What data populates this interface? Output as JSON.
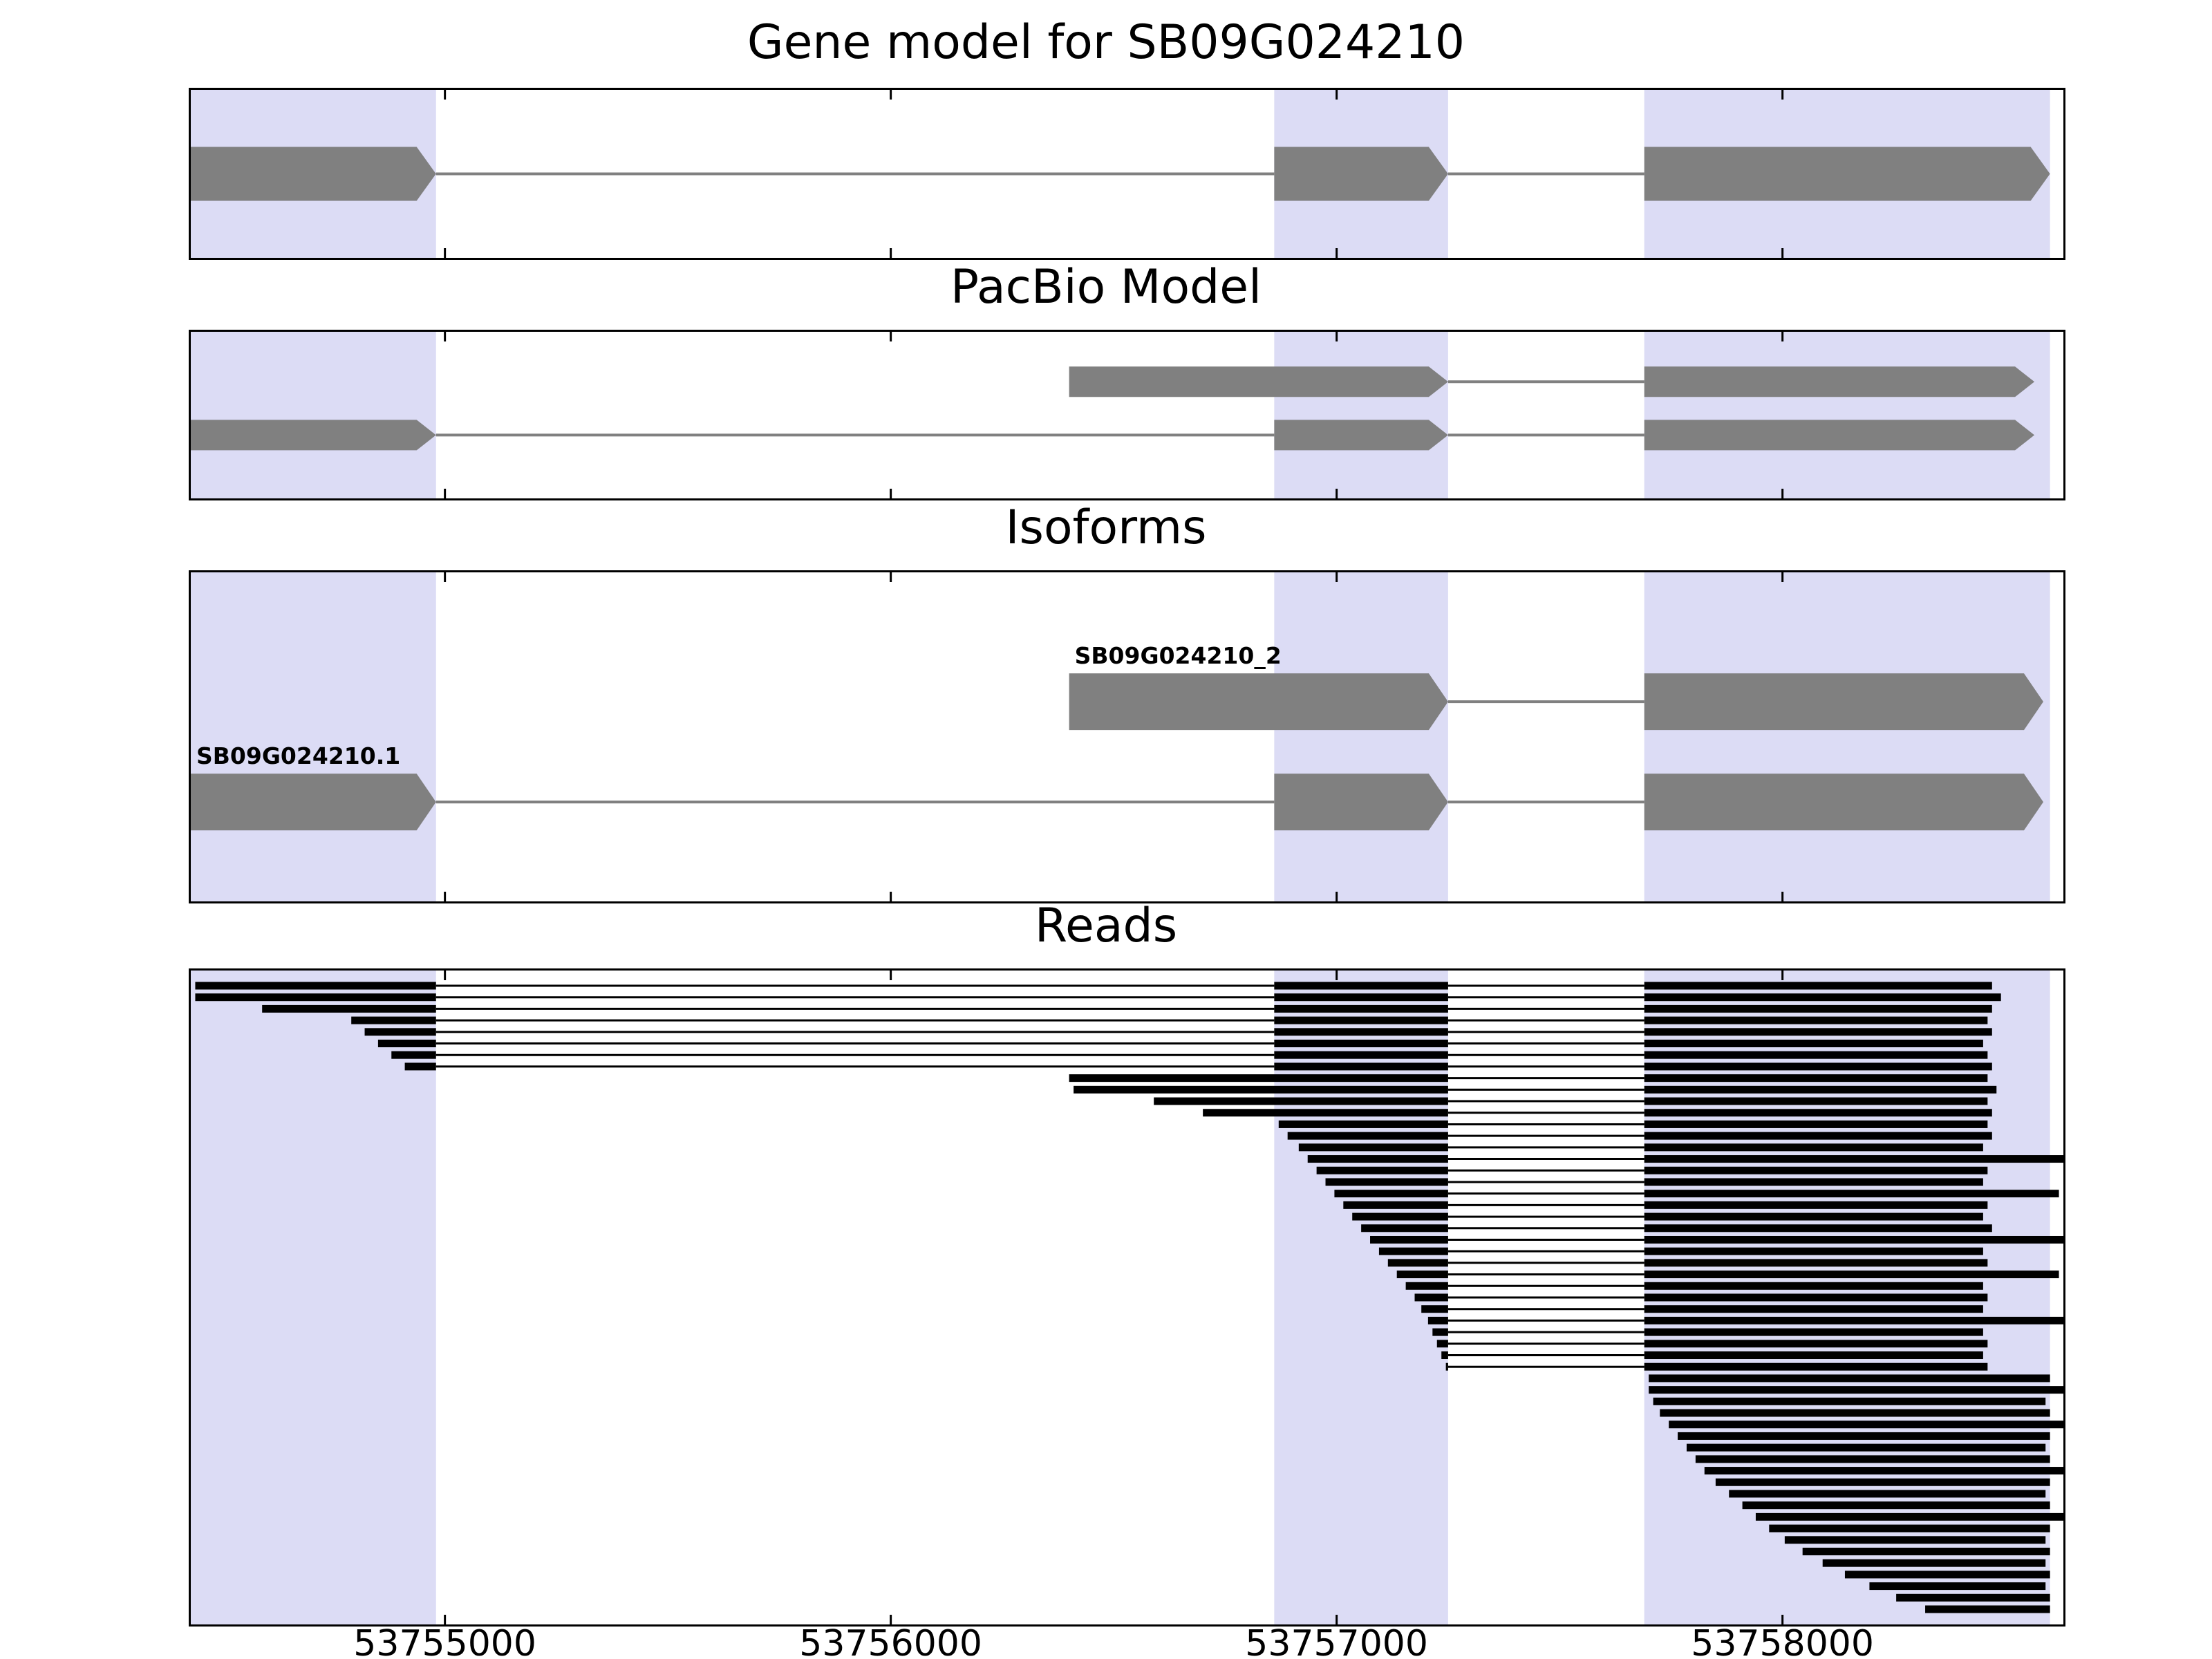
{
  "chart_data": {
    "type": "gene-model-tracks",
    "xlim": [
      53754430,
      53758630
    ],
    "x_ticks": [
      53755000,
      53756000,
      53757000,
      53758000
    ],
    "x_tick_labels": [
      "53755000",
      "53756000",
      "53757000",
      "53758000"
    ],
    "highlight_regions": [
      [
        53754430,
        53754980
      ],
      [
        53756860,
        53757250
      ],
      [
        53757690,
        53758600
      ]
    ],
    "colors": {
      "highlight": "#dcdcf5",
      "exon": "#808080",
      "intron": "#808080",
      "read": "#000000",
      "border": "#000000",
      "text": "#000000"
    },
    "panels": [
      {
        "id": "gene-model",
        "title": "Gene model for SB09G024210",
        "transcripts": [
          {
            "exons": [
              [
                53754430,
                53754980
              ],
              [
                53756860,
                53757250
              ],
              [
                53757690,
                53758600
              ]
            ],
            "strand": "+"
          }
        ]
      },
      {
        "id": "pacbio-model",
        "title": "PacBio Model",
        "transcripts": [
          {
            "exons": [
              [
                53756400,
                53757250
              ],
              [
                53757690,
                53758565
              ]
            ],
            "strand": "+"
          },
          {
            "exons": [
              [
                53754430,
                53754980
              ],
              [
                53756860,
                53757250
              ],
              [
                53757690,
                53758565
              ]
            ],
            "strand": "+"
          }
        ]
      },
      {
        "id": "isoforms",
        "title": "Isoforms",
        "transcripts": [
          {
            "label": "SB09G024210_2",
            "exons": [
              [
                53756400,
                53757250
              ],
              [
                53757690,
                53758585
              ]
            ],
            "strand": "+"
          },
          {
            "label": "SB09G024210.1",
            "exons": [
              [
                53754430,
                53754980
              ],
              [
                53756860,
                53757250
              ],
              [
                53757690,
                53758585
              ]
            ],
            "strand": "+"
          }
        ]
      },
      {
        "id": "reads",
        "title": "Reads",
        "reads": [
          {
            "blocks": [
              [
                53754440,
                53754980
              ],
              [
                53756860,
                53757250
              ],
              [
                53757690,
                53758470
              ]
            ]
          },
          {
            "blocks": [
              [
                53754440,
                53754980
              ],
              [
                53756860,
                53757250
              ],
              [
                53757690,
                53758490
              ]
            ]
          },
          {
            "blocks": [
              [
                53754590,
                53754980
              ],
              [
                53756860,
                53757250
              ],
              [
                53757690,
                53758470
              ]
            ]
          },
          {
            "blocks": [
              [
                53754790,
                53754980
              ],
              [
                53756860,
                53757250
              ],
              [
                53757690,
                53758460
              ]
            ]
          },
          {
            "blocks": [
              [
                53754820,
                53754980
              ],
              [
                53756860,
                53757250
              ],
              [
                53757690,
                53758470
              ]
            ]
          },
          {
            "blocks": [
              [
                53754850,
                53754980
              ],
              [
                53756860,
                53757250
              ],
              [
                53757690,
                53758450
              ]
            ]
          },
          {
            "blocks": [
              [
                53754880,
                53754980
              ],
              [
                53756860,
                53757250
              ],
              [
                53757690,
                53758460
              ]
            ]
          },
          {
            "blocks": [
              [
                53754910,
                53754980
              ],
              [
                53756860,
                53757250
              ],
              [
                53757690,
                53758470
              ]
            ]
          },
          {
            "blocks": [
              [
                53756400,
                53757250
              ],
              [
                53757690,
                53758460
              ]
            ]
          },
          {
            "blocks": [
              [
                53756410,
                53757250
              ],
              [
                53757690,
                53758480
              ]
            ]
          },
          {
            "blocks": [
              [
                53756590,
                53757250
              ],
              [
                53757690,
                53758460
              ]
            ]
          },
          {
            "blocks": [
              [
                53756700,
                53757250
              ],
              [
                53757690,
                53758470
              ]
            ]
          },
          {
            "blocks": [
              [
                53756870,
                53757250
              ],
              [
                53757690,
                53758460
              ]
            ]
          },
          {
            "blocks": [
              [
                53756890,
                53757250
              ],
              [
                53757690,
                53758470
              ]
            ]
          },
          {
            "blocks": [
              [
                53756915,
                53757250
              ],
              [
                53757690,
                53758450
              ]
            ]
          },
          {
            "blocks": [
              [
                53756935,
                53757250
              ],
              [
                53757690,
                53758630
              ]
            ]
          },
          {
            "blocks": [
              [
                53756955,
                53757250
              ],
              [
                53757690,
                53758460
              ]
            ]
          },
          {
            "blocks": [
              [
                53756975,
                53757250
              ],
              [
                53757690,
                53758450
              ]
            ]
          },
          {
            "blocks": [
              [
                53756995,
                53757250
              ],
              [
                53757690,
                53758620
              ]
            ]
          },
          {
            "blocks": [
              [
                53757015,
                53757250
              ],
              [
                53757690,
                53758460
              ]
            ]
          },
          {
            "blocks": [
              [
                53757035,
                53757250
              ],
              [
                53757690,
                53758450
              ]
            ]
          },
          {
            "blocks": [
              [
                53757055,
                53757250
              ],
              [
                53757690,
                53758470
              ]
            ]
          },
          {
            "blocks": [
              [
                53757075,
                53757250
              ],
              [
                53757690,
                53758630
              ]
            ]
          },
          {
            "blocks": [
              [
                53757095,
                53757250
              ],
              [
                53757690,
                53758450
              ]
            ]
          },
          {
            "blocks": [
              [
                53757115,
                53757250
              ],
              [
                53757690,
                53758460
              ]
            ]
          },
          {
            "blocks": [
              [
                53757135,
                53757250
              ],
              [
                53757690,
                53758620
              ]
            ]
          },
          {
            "blocks": [
              [
                53757155,
                53757250
              ],
              [
                53757690,
                53758450
              ]
            ]
          },
          {
            "blocks": [
              [
                53757175,
                53757250
              ],
              [
                53757690,
                53758460
              ]
            ]
          },
          {
            "blocks": [
              [
                53757190,
                53757250
              ],
              [
                53757690,
                53758450
              ]
            ]
          },
          {
            "blocks": [
              [
                53757205,
                53757250
              ],
              [
                53757690,
                53758630
              ]
            ]
          },
          {
            "blocks": [
              [
                53757215,
                53757250
              ],
              [
                53757690,
                53758450
              ]
            ]
          },
          {
            "blocks": [
              [
                53757225,
                53757250
              ],
              [
                53757690,
                53758460
              ]
            ]
          },
          {
            "blocks": [
              [
                53757235,
                53757250
              ],
              [
                53757690,
                53758450
              ]
            ]
          },
          {
            "blocks": [
              [
                53757245,
                53757250
              ],
              [
                53757690,
                53758460
              ]
            ]
          },
          {
            "blocks": [
              [
                53757700,
                53758600
              ]
            ]
          },
          {
            "blocks": [
              [
                53757700,
                53758630
              ]
            ]
          },
          {
            "blocks": [
              [
                53757710,
                53758590
              ]
            ]
          },
          {
            "blocks": [
              [
                53757725,
                53758600
              ]
            ]
          },
          {
            "blocks": [
              [
                53757745,
                53758630
              ]
            ]
          },
          {
            "blocks": [
              [
                53757765,
                53758600
              ]
            ]
          },
          {
            "blocks": [
              [
                53757785,
                53758590
              ]
            ]
          },
          {
            "blocks": [
              [
                53757805,
                53758600
              ]
            ]
          },
          {
            "blocks": [
              [
                53757825,
                53758630
              ]
            ]
          },
          {
            "blocks": [
              [
                53757850,
                53758600
              ]
            ]
          },
          {
            "blocks": [
              [
                53757880,
                53758590
              ]
            ]
          },
          {
            "blocks": [
              [
                53757910,
                53758600
              ]
            ]
          },
          {
            "blocks": [
              [
                53757940,
                53758630
              ]
            ]
          },
          {
            "blocks": [
              [
                53757970,
                53758600
              ]
            ]
          },
          {
            "blocks": [
              [
                53758005,
                53758590
              ]
            ]
          },
          {
            "blocks": [
              [
                53758045,
                53758600
              ]
            ]
          },
          {
            "blocks": [
              [
                53758090,
                53758590
              ]
            ]
          },
          {
            "blocks": [
              [
                53758140,
                53758600
              ]
            ]
          },
          {
            "blocks": [
              [
                53758195,
                53758590
              ]
            ]
          },
          {
            "blocks": [
              [
                53758255,
                53758600
              ]
            ]
          },
          {
            "blocks": [
              [
                53758320,
                53758600
              ]
            ]
          }
        ]
      }
    ]
  }
}
